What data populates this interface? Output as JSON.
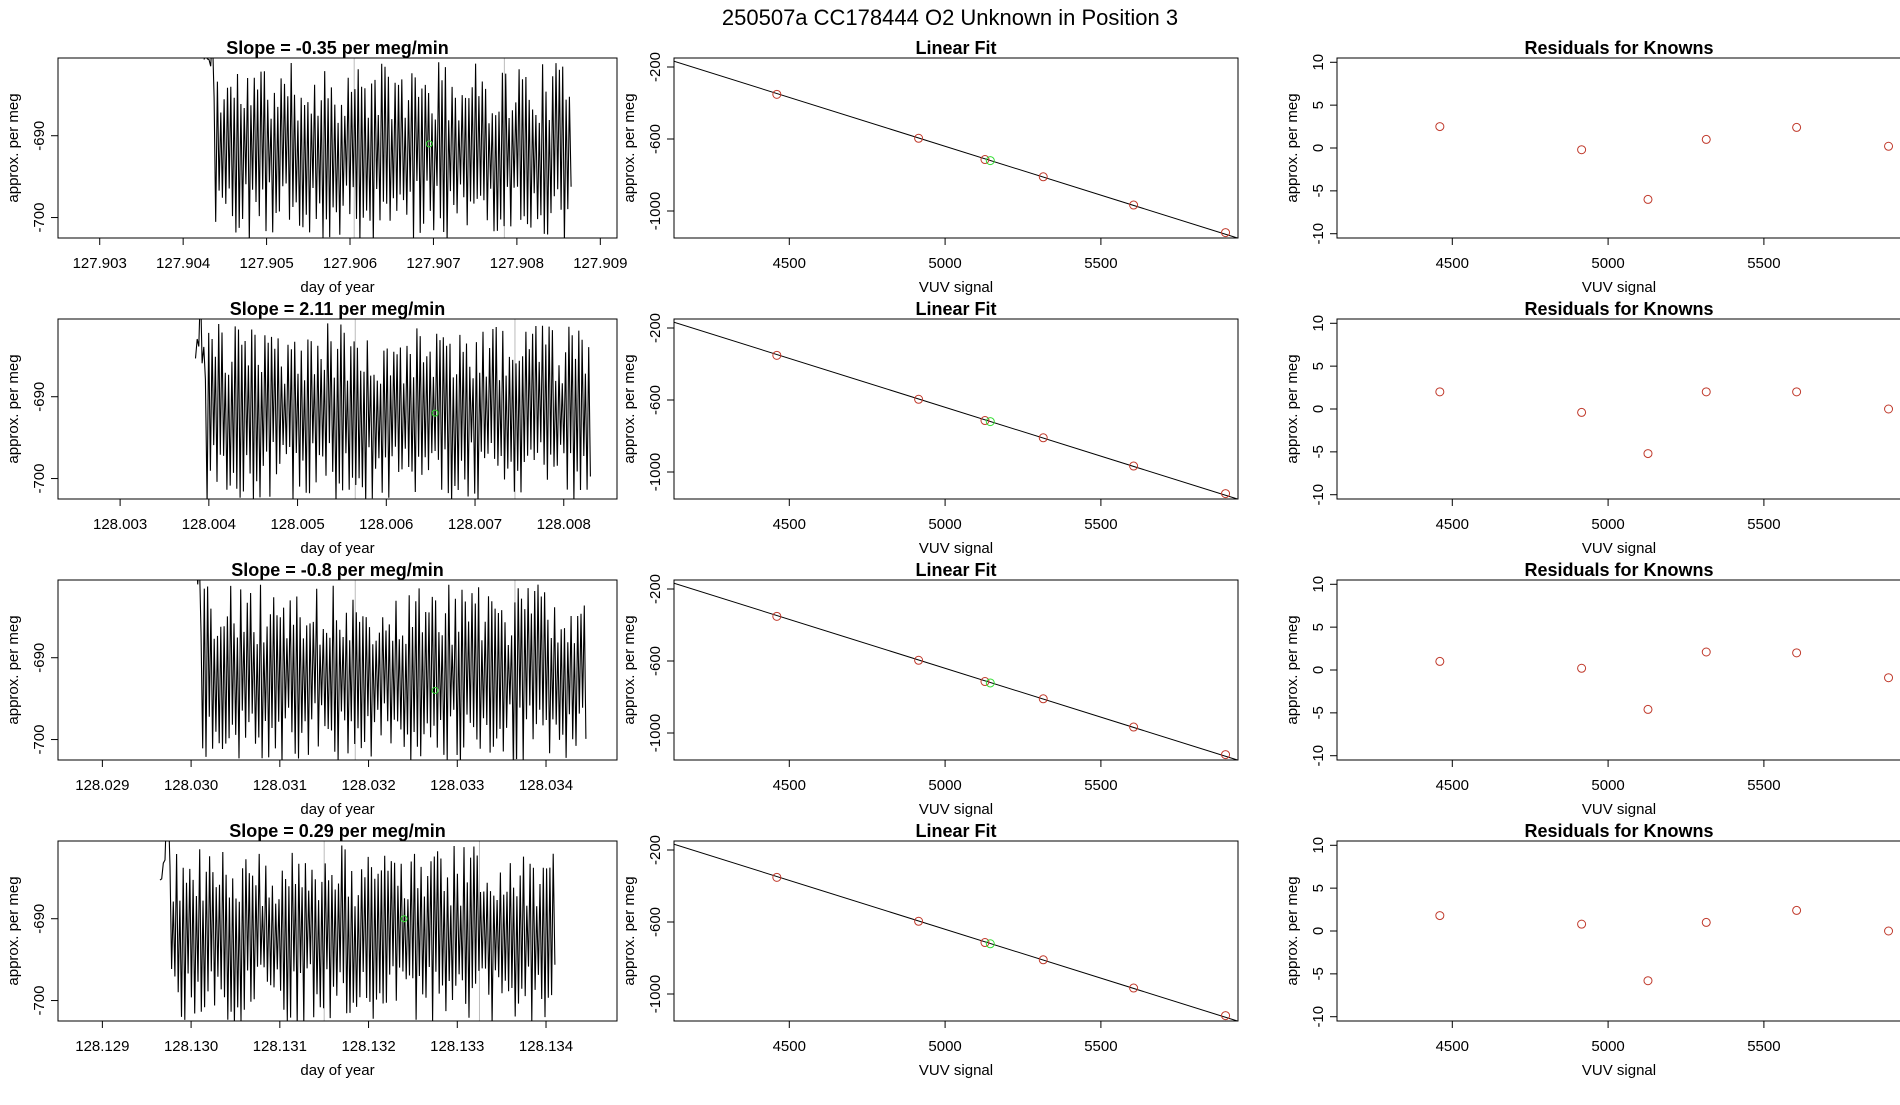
{
  "page": {
    "title": "250507a      CC178444   O2 Unknown in Position  3"
  },
  "chart_data": [
    {
      "type": "line",
      "panel": "timeseries",
      "title": "Slope =  -0.35  per meg/min",
      "xlabel": "day of year",
      "ylabel": "approx. per meg",
      "xlim": [
        127.9025,
        127.9092
      ],
      "ylim": [
        -702.5,
        -680.5
      ],
      "xticks": [
        "127.903",
        "127.904",
        "127.905",
        "127.906",
        "127.907",
        "127.908",
        "127.909"
      ],
      "yticks": [
        "-700",
        "-690"
      ],
      "signal": {
        "x_start": 127.90425,
        "x_end": 127.90865,
        "n": 220,
        "center": -692,
        "amplitude": 10,
        "seed": 11
      },
      "vlines": [
        127.90605,
        127.90785
      ],
      "mark": {
        "x": 127.90695,
        "y": -691
      }
    },
    {
      "type": "scatter",
      "panel": "fit",
      "title": "Linear Fit",
      "xlabel": "VUV signal",
      "ylabel": "approx. per meg",
      "xlim": [
        4130,
        5940
      ],
      "ylim": [
        -1150,
        -150
      ],
      "xticks": [
        "4500",
        "5000",
        "5500"
      ],
      "yticks": [
        "-200",
        "-600",
        "-1000"
      ],
      "line": [
        [
          4130,
          -168
        ],
        [
          5940,
          -1151
        ]
      ],
      "known": [
        [
          4460,
          -352
        ],
        [
          4915,
          -596
        ],
        [
          5128,
          -714
        ],
        [
          5315,
          -810
        ],
        [
          5605,
          -967
        ],
        [
          5900,
          -1120
        ]
      ],
      "unknown": [
        [
          5145,
          -720
        ]
      ]
    },
    {
      "type": "scatter",
      "panel": "residuals",
      "title": "Residuals for Knowns",
      "xlabel": "VUV signal",
      "ylabel": "approx. per meg",
      "xlim": [
        4130,
        5940
      ],
      "ylim": [
        -10.5,
        10.5
      ],
      "xticks": [
        "4500",
        "5000",
        "5500"
      ],
      "yticks": [
        "-10",
        "-5",
        "0",
        "5",
        "10"
      ],
      "points": [
        [
          4460,
          2.5
        ],
        [
          4915,
          -0.2
        ],
        [
          5128,
          -6.0
        ],
        [
          5315,
          1.0
        ],
        [
          5605,
          2.4
        ],
        [
          5900,
          0.2
        ]
      ]
    },
    {
      "type": "line",
      "panel": "timeseries",
      "title": "Slope =  2.11  per meg/min",
      "xlabel": "day of year",
      "ylabel": "approx. per meg",
      "xlim": [
        128.0023,
        128.0086
      ],
      "ylim": [
        -702.5,
        -680.5
      ],
      "xticks": [
        "128.003",
        "128.004",
        "128.005",
        "128.006",
        "128.007",
        "128.008"
      ],
      "yticks": [
        "-700",
        "-690"
      ],
      "signal": {
        "x_start": 128.00385,
        "x_end": 128.0083,
        "n": 240,
        "center": -692,
        "amplitude": 10,
        "seed": 23
      },
      "vlines": [
        128.00565,
        128.00745
      ],
      "mark": {
        "x": 128.00655,
        "y": -692
      }
    },
    {
      "type": "scatter",
      "panel": "fit",
      "title": "Linear Fit",
      "xlabel": "VUV signal",
      "ylabel": "approx. per meg",
      "xlim": [
        4130,
        5940
      ],
      "ylim": [
        -1150,
        -150
      ],
      "xticks": [
        "4500",
        "5000",
        "5500"
      ],
      "yticks": [
        "-200",
        "-600",
        "-1000"
      ],
      "line": [
        [
          4130,
          -168
        ],
        [
          5940,
          -1151
        ]
      ],
      "known": [
        [
          4460,
          -352
        ],
        [
          4915,
          -596
        ],
        [
          5128,
          -714
        ],
        [
          5315,
          -810
        ],
        [
          5605,
          -967
        ],
        [
          5900,
          -1120
        ]
      ],
      "unknown": [
        [
          5145,
          -720
        ]
      ]
    },
    {
      "type": "scatter",
      "panel": "residuals",
      "title": "Residuals for Knowns",
      "xlabel": "VUV signal",
      "ylabel": "approx. per meg",
      "xlim": [
        4130,
        5940
      ],
      "ylim": [
        -10.5,
        10.5
      ],
      "xticks": [
        "4500",
        "5000",
        "5500"
      ],
      "yticks": [
        "-10",
        "-5",
        "0",
        "5",
        "10"
      ],
      "points": [
        [
          4460,
          2.0
        ],
        [
          4915,
          -0.4
        ],
        [
          5128,
          -5.2
        ],
        [
          5315,
          2.0
        ],
        [
          5605,
          2.0
        ],
        [
          5900,
          0.0
        ]
      ]
    },
    {
      "type": "line",
      "panel": "timeseries",
      "title": "Slope =  -0.8  per meg/min",
      "xlabel": "day of year",
      "ylabel": "approx. per meg",
      "xlim": [
        128.0285,
        128.0348
      ],
      "ylim": [
        -702.5,
        -680.5
      ],
      "xticks": [
        "128.029",
        "128.030",
        "128.031",
        "128.032",
        "128.033",
        "128.034"
      ],
      "yticks": [
        "-700",
        "-690"
      ],
      "signal": {
        "x_start": 128.03,
        "x_end": 128.03445,
        "n": 240,
        "center": -692,
        "amplitude": 10,
        "seed": 37
      },
      "vlines": [
        128.03185,
        128.03365
      ],
      "mark": {
        "x": 128.03275,
        "y": -694
      }
    },
    {
      "type": "scatter",
      "panel": "fit",
      "title": "Linear Fit",
      "xlabel": "VUV signal",
      "ylabel": "approx. per meg",
      "xlim": [
        4130,
        5940
      ],
      "ylim": [
        -1150,
        -150
      ],
      "xticks": [
        "4500",
        "5000",
        "5500"
      ],
      "yticks": [
        "-200",
        "-600",
        "-1000"
      ],
      "line": [
        [
          4130,
          -168
        ],
        [
          5940,
          -1151
        ]
      ],
      "known": [
        [
          4460,
          -352
        ],
        [
          4915,
          -596
        ],
        [
          5128,
          -714
        ],
        [
          5315,
          -810
        ],
        [
          5605,
          -967
        ],
        [
          5900,
          -1120
        ]
      ],
      "unknown": [
        [
          5145,
          -722
        ]
      ]
    },
    {
      "type": "scatter",
      "panel": "residuals",
      "title": "Residuals for Knowns",
      "xlabel": "VUV signal",
      "ylabel": "approx. per meg",
      "xlim": [
        4130,
        5940
      ],
      "ylim": [
        -10.5,
        10.5
      ],
      "xticks": [
        "4500",
        "5000",
        "5500"
      ],
      "yticks": [
        "-10",
        "-5",
        "0",
        "5",
        "10"
      ],
      "points": [
        [
          4460,
          1.0
        ],
        [
          4915,
          0.2
        ],
        [
          5128,
          -4.6
        ],
        [
          5315,
          2.1
        ],
        [
          5605,
          2.0
        ],
        [
          5900,
          -0.9
        ]
      ]
    },
    {
      "type": "line",
      "panel": "timeseries",
      "title": "Slope =  0.29  per meg/min",
      "xlabel": "day of year",
      "ylabel": "approx. per meg",
      "xlim": [
        128.1285,
        128.1348
      ],
      "ylim": [
        -702.5,
        -680.5
      ],
      "xticks": [
        "128.129",
        "128.130",
        "128.131",
        "128.132",
        "128.133",
        "128.134"
      ],
      "yticks": [
        "-700",
        "-690"
      ],
      "signal": {
        "x_start": 128.12965,
        "x_end": 128.1341,
        "n": 240,
        "center": -692,
        "amplitude": 10,
        "seed": 51
      },
      "vlines": [
        128.1315,
        128.13325
      ],
      "mark": {
        "x": 128.1324,
        "y": -690
      }
    },
    {
      "type": "scatter",
      "panel": "fit",
      "title": "Linear Fit",
      "xlabel": "VUV signal",
      "ylabel": "approx. per meg",
      "xlim": [
        4130,
        5940
      ],
      "ylim": [
        -1150,
        -150
      ],
      "xticks": [
        "4500",
        "5000",
        "5500"
      ],
      "yticks": [
        "-200",
        "-600",
        "-1000"
      ],
      "line": [
        [
          4130,
          -168
        ],
        [
          5940,
          -1151
        ]
      ],
      "known": [
        [
          4460,
          -352
        ],
        [
          4915,
          -596
        ],
        [
          5128,
          -714
        ],
        [
          5315,
          -810
        ],
        [
          5605,
          -967
        ],
        [
          5900,
          -1120
        ]
      ],
      "unknown": [
        [
          5145,
          -721
        ]
      ]
    },
    {
      "type": "scatter",
      "panel": "residuals",
      "title": "Residuals for Knowns",
      "xlabel": "VUV signal",
      "ylabel": "approx. per meg",
      "xlim": [
        4130,
        5940
      ],
      "ylim": [
        -10.5,
        10.5
      ],
      "xticks": [
        "4500",
        "5000",
        "5500"
      ],
      "yticks": [
        "-10",
        "-5",
        "0",
        "5",
        "10"
      ],
      "points": [
        [
          4460,
          1.8
        ],
        [
          4915,
          0.8
        ],
        [
          5128,
          -5.8
        ],
        [
          5315,
          1.0
        ],
        [
          5605,
          2.4
        ],
        [
          5900,
          0.0
        ]
      ]
    }
  ],
  "colors": {
    "known": "#c0392b",
    "unknown": "#33dd33",
    "vline": "#bbbbbb",
    "axis": "#000000"
  }
}
